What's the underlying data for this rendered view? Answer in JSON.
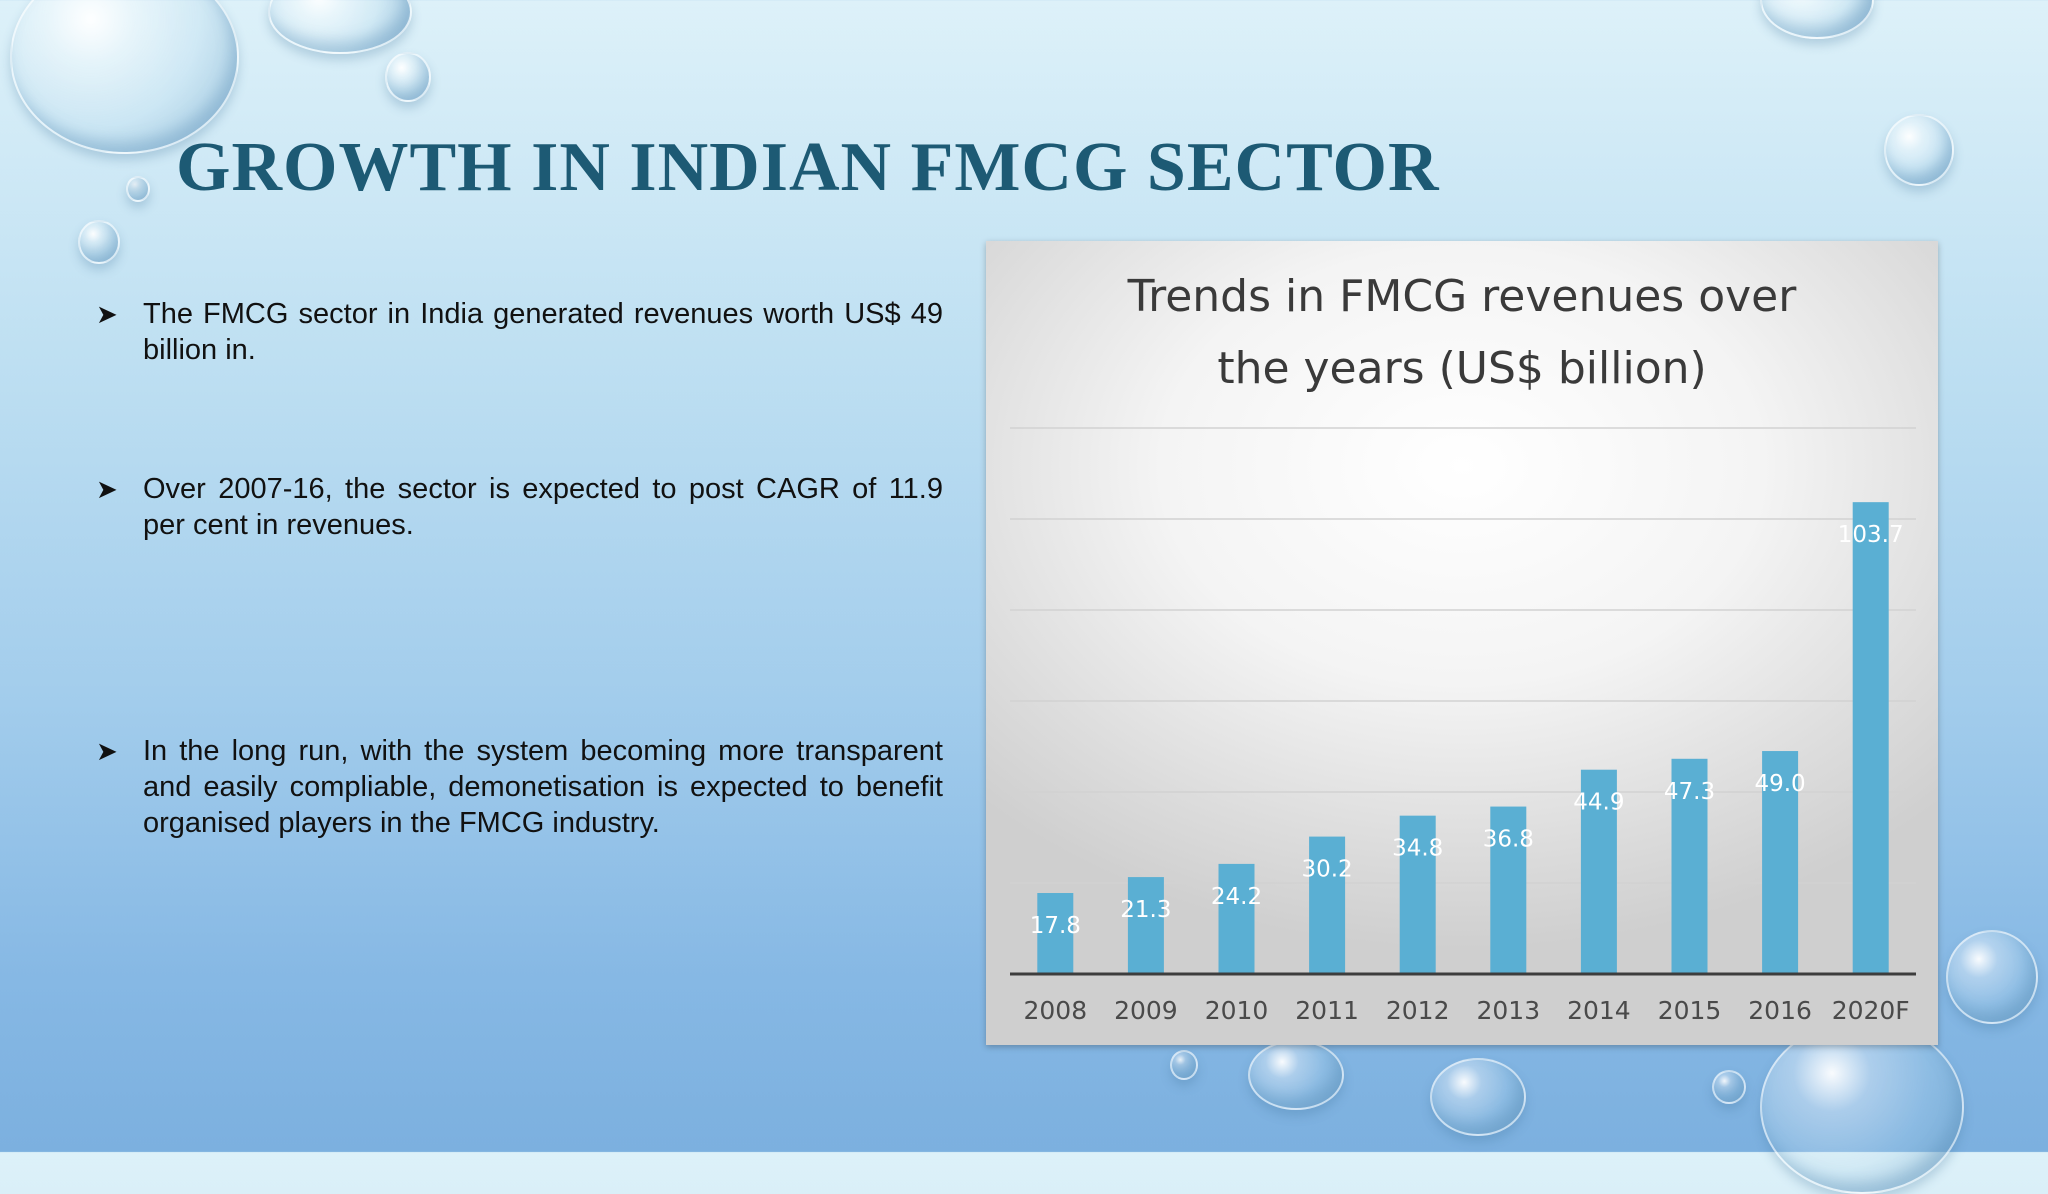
{
  "slide": {
    "title": "GROWTH IN INDIAN FMCG SECTOR",
    "bullets": [
      "The FMCG sector in India generated revenues worth US$ 49 billion in.",
      "Over 2007-16, the sector is expected to post CAGR of 11.9 per cent in revenues.",
      "In the long run, with the system becoming more transparent and easily compliable, demonetisation is expected to benefit organised players in the FMCG industry."
    ],
    "bullet_icon": "arrowhead-bullet-icon"
  },
  "chart_data": {
    "type": "bar",
    "title_lines": [
      "Trends in FMCG revenues over",
      "the years (US$ billion)"
    ],
    "categories": [
      "2008",
      "2009",
      "2010",
      "2011",
      "2012",
      "2013",
      "2014",
      "2015",
      "2016",
      "2020F"
    ],
    "values": [
      17.8,
      21.3,
      24.2,
      30.2,
      34.8,
      36.8,
      44.9,
      47.3,
      49.0,
      103.7
    ],
    "labels": [
      "17.8",
      "21.3",
      "24.2",
      "30.2",
      "34.8",
      "36.8",
      "44.9",
      "47.3",
      "49.0",
      "103.7"
    ],
    "ylim": [
      0,
      120
    ],
    "y_gridlines": true,
    "bar_color": "#5aafd3",
    "label_color": "#ffffff",
    "legend": "none"
  }
}
